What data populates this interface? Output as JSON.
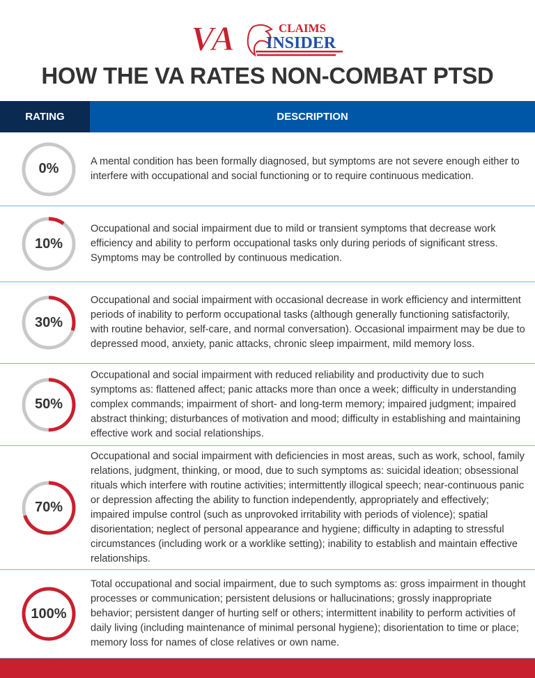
{
  "logo": {
    "text_va": "VA",
    "text_claims": "CLAIMS",
    "text_insider": "INSIDER"
  },
  "title": "HOW THE VA RATES NON-COMBAT PTSD",
  "table": {
    "headers": {
      "rating": "RATING",
      "description": "DESCRIPTION"
    },
    "colors": {
      "ring_fill": "#c8202f",
      "ring_track": "#c8c8c8",
      "header_dark": "#0a2a52",
      "header_blue": "#0057a8",
      "footer": "#c8202f"
    },
    "rows": [
      {
        "rating": "0%",
        "fraction": 0,
        "description": "A mental condition has been formally diagnosed, but symptoms are not severe enough either to interfere with occupational and social functioning or to require continuous medication."
      },
      {
        "rating": "10%",
        "fraction": 0.1,
        "description": "Occupational and social impairment due to mild or transient symptoms that decrease work efficiency and ability to perform occupational tasks only during periods of significant stress. Symptoms may be controlled by continuous medication."
      },
      {
        "rating": "30%",
        "fraction": 0.3,
        "description": "Occupational and social impairment with occasional decrease in work efficiency and intermittent periods of inability to perform occupational tasks (although generally functioning satisfactorily, with routine behavior, self-care, and normal conversation). Occasional impairment may be due to depressed mood, anxiety, panic attacks, chronic sleep impairment, mild memory loss."
      },
      {
        "rating": "50%",
        "fraction": 0.5,
        "description": "Occupational and social impairment with reduced reliability and productivity due to such symptoms as: flattened affect; panic attacks more than once a week; difficulty in understanding complex commands; impairment of short- and long-term memory; impaired judgment; impaired abstract thinking; disturbances of motivation and mood; difficulty in establishing and maintaining effective work and social relationships."
      },
      {
        "rating": "70%",
        "fraction": 0.7,
        "description": "Occupational and social impairment with deficiencies in most areas, such as work, school, family relations, judgment, thinking, or mood, due to such symptoms as: suicidal ideation; obsessional rituals which interfere with routine activities; intermittently illogical speech; near-continuous panic or depression affecting the ability to function independently, appropriately and effectively; impaired impulse control (such as unprovoked irritability with periods of violence); spatial disorientation; neglect of personal appearance and hygiene; difficulty in adapting to stressful circumstances (including work or a worklike setting); inability to establish and maintain effective relationships."
      },
      {
        "rating": "100%",
        "fraction": 1,
        "description": "Total occupational and social impairment, due to such symptoms as: gross impairment in thought processes or communication; persistent delusions or hallucinations; grossly inappropriate behavior; persistent danger of hurting self or others; intermittent inability to perform activities of daily living (including maintenance of minimal personal hygiene); disorientation to time or place; memory loss for names of close relatives or own name."
      }
    ]
  }
}
